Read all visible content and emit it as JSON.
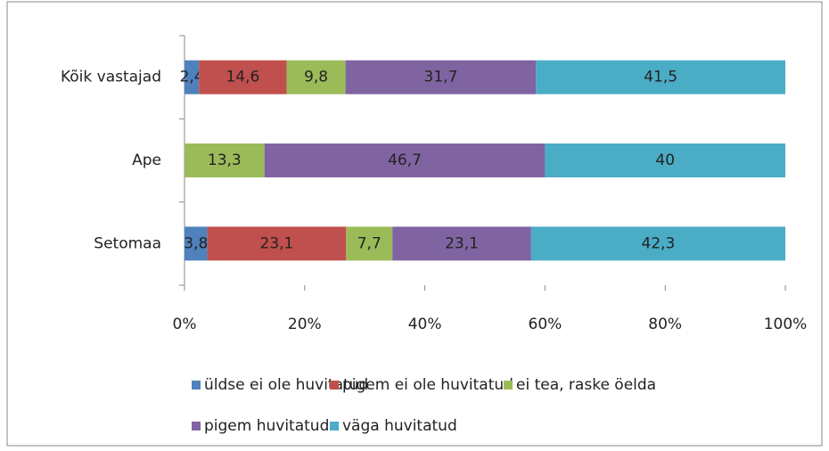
{
  "chart_data": {
    "type": "stacked_barh",
    "categories": [
      "Kõik vastajad",
      "Ape",
      "Setomaa"
    ],
    "series": [
      {
        "name": "üldse ei ole huvitatud",
        "color": "#4f81bd",
        "values": [
          2.4,
          null,
          3.8
        ],
        "value_labels": [
          "2,4",
          null,
          "3,8"
        ]
      },
      {
        "name": "pigem ei ole huvitatud",
        "color": "#c0504d",
        "values": [
          14.6,
          null,
          23.1
        ],
        "value_labels": [
          "14,6",
          null,
          "23,1"
        ]
      },
      {
        "name": "ei tea, raske öelda",
        "color": "#9bbb59",
        "values": [
          9.8,
          13.3,
          7.7
        ],
        "value_labels": [
          "9,8",
          "13,3",
          "7,7"
        ]
      },
      {
        "name": "pigem huvitatud",
        "color": "#8064a2",
        "values": [
          31.7,
          46.7,
          23.1
        ],
        "value_labels": [
          "31,7",
          "46,7",
          "23,1"
        ]
      },
      {
        "name": "väga huvitatud",
        "color": "#4bacc6",
        "values": [
          41.5,
          40,
          42.3
        ],
        "value_labels": [
          "41,5",
          "40",
          "42,3"
        ]
      }
    ],
    "xlim": [
      0,
      100
    ],
    "xticks": [
      {
        "value": 0,
        "label": "0%"
      },
      {
        "value": 20,
        "label": "20%"
      },
      {
        "value": 40,
        "label": "40%"
      },
      {
        "value": 60,
        "label": "60%"
      },
      {
        "value": 80,
        "label": "80%"
      },
      {
        "value": 100,
        "label": "100%"
      }
    ],
    "legend": "bottom"
  }
}
